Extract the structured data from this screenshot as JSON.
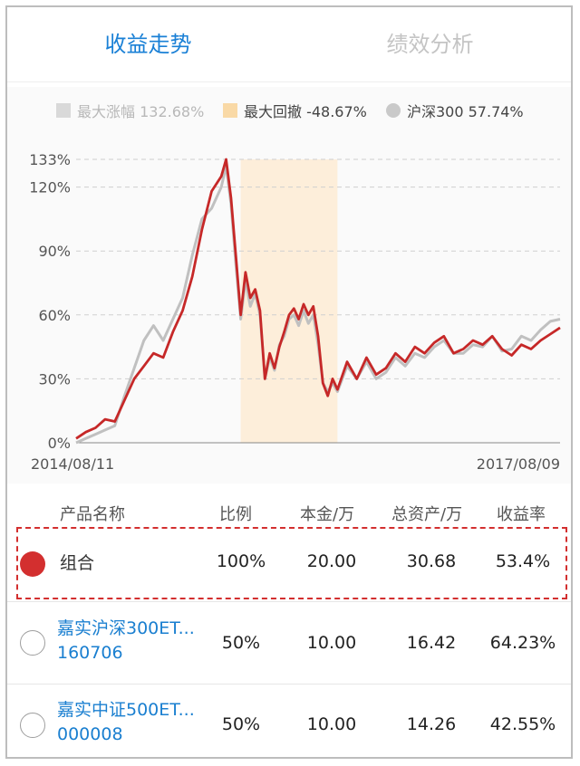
{
  "tabs": [
    {
      "label": "收益走势",
      "active": true
    },
    {
      "label": "绩效分析",
      "active": false
    }
  ],
  "legend": [
    {
      "label": "最大涨幅 132.68%",
      "color": "#d9d9d9",
      "shape": "square"
    },
    {
      "label": "最大回撤 -48.67%",
      "color": "#f9d9a6",
      "shape": "square"
    },
    {
      "label": "沪深300 57.74%",
      "color": "#c9c9c9",
      "shape": "circle"
    }
  ],
  "chart_data": {
    "type": "line",
    "x_start_label": "2014/08/11",
    "x_end_label": "2017/08/09",
    "y_ticks": [
      "0%",
      "30%",
      "60%",
      "90%",
      "120%",
      "133%"
    ],
    "y_tick_values": [
      0,
      30,
      60,
      90,
      120,
      133
    ],
    "ylim": [
      0,
      133
    ],
    "grid": true,
    "drawdown_period_fraction": [
      0.34,
      0.54
    ],
    "series": [
      {
        "name": "组合",
        "color": "#c62828",
        "x": [
          0,
          0.02,
          0.04,
          0.06,
          0.08,
          0.1,
          0.12,
          0.14,
          0.16,
          0.18,
          0.2,
          0.22,
          0.24,
          0.26,
          0.28,
          0.3,
          0.31,
          0.32,
          0.33,
          0.34,
          0.35,
          0.36,
          0.37,
          0.38,
          0.39,
          0.4,
          0.41,
          0.42,
          0.43,
          0.44,
          0.45,
          0.46,
          0.47,
          0.48,
          0.49,
          0.5,
          0.51,
          0.52,
          0.53,
          0.54,
          0.56,
          0.58,
          0.6,
          0.62,
          0.64,
          0.66,
          0.68,
          0.7,
          0.72,
          0.74,
          0.76,
          0.78,
          0.8,
          0.82,
          0.84,
          0.86,
          0.88,
          0.9,
          0.92,
          0.94,
          0.96,
          0.98,
          1.0
        ],
        "values": [
          2,
          5,
          7,
          11,
          10,
          20,
          30,
          36,
          42,
          40,
          52,
          62,
          78,
          100,
          118,
          125,
          133,
          115,
          88,
          60,
          80,
          68,
          72,
          62,
          30,
          42,
          35,
          45,
          52,
          60,
          63,
          58,
          65,
          60,
          64,
          50,
          28,
          22,
          30,
          25,
          38,
          30,
          40,
          32,
          35,
          42,
          38,
          45,
          42,
          47,
          50,
          42,
          44,
          48,
          46,
          50,
          44,
          41,
          46,
          44,
          48,
          51,
          54
        ]
      },
      {
        "name": "沪深300",
        "color": "#c0c0c0",
        "x": [
          0,
          0.02,
          0.04,
          0.06,
          0.08,
          0.1,
          0.12,
          0.14,
          0.16,
          0.18,
          0.2,
          0.22,
          0.24,
          0.26,
          0.28,
          0.3,
          0.31,
          0.32,
          0.33,
          0.34,
          0.35,
          0.36,
          0.37,
          0.38,
          0.39,
          0.4,
          0.41,
          0.42,
          0.43,
          0.44,
          0.45,
          0.46,
          0.47,
          0.48,
          0.49,
          0.5,
          0.51,
          0.52,
          0.53,
          0.54,
          0.56,
          0.58,
          0.6,
          0.62,
          0.64,
          0.66,
          0.68,
          0.7,
          0.72,
          0.74,
          0.76,
          0.78,
          0.8,
          0.82,
          0.84,
          0.86,
          0.88,
          0.9,
          0.92,
          0.94,
          0.96,
          0.98,
          1.0
        ],
        "values": [
          0,
          2,
          4,
          6,
          8,
          22,
          35,
          48,
          55,
          48,
          58,
          68,
          88,
          105,
          110,
          120,
          130,
          112,
          84,
          58,
          76,
          64,
          70,
          60,
          30,
          40,
          34,
          46,
          50,
          58,
          60,
          55,
          62,
          56,
          60,
          46,
          28,
          24,
          28,
          24,
          36,
          30,
          38,
          30,
          33,
          40,
          36,
          42,
          40,
          45,
          48,
          42,
          42,
          46,
          45,
          50,
          43,
          44,
          50,
          48,
          53,
          57,
          58
        ]
      }
    ]
  },
  "table": {
    "headers": [
      "产品名称",
      "比例",
      "本金/万",
      "总资产/万",
      "收益率"
    ],
    "rows": [
      {
        "name1": "组合",
        "name2": "",
        "ratio": "100%",
        "principal": "20.00",
        "assets": "30.68",
        "yield": "53.4%",
        "selected": true
      },
      {
        "name1": "嘉实沪深300ET...",
        "name2": "160706",
        "ratio": "50%",
        "principal": "10.00",
        "assets": "16.42",
        "yield": "64.23%",
        "selected": false
      },
      {
        "name1": "嘉实中证500ET...",
        "name2": "000008",
        "ratio": "50%",
        "principal": "10.00",
        "assets": "14.26",
        "yield": "42.55%",
        "selected": false
      }
    ]
  },
  "colors": {
    "accent": "#1a80d6",
    "portfolio": "#c62828",
    "index": "#c0c0c0",
    "drawdown": "#fdeeda",
    "highlight": "#d32f2f"
  }
}
